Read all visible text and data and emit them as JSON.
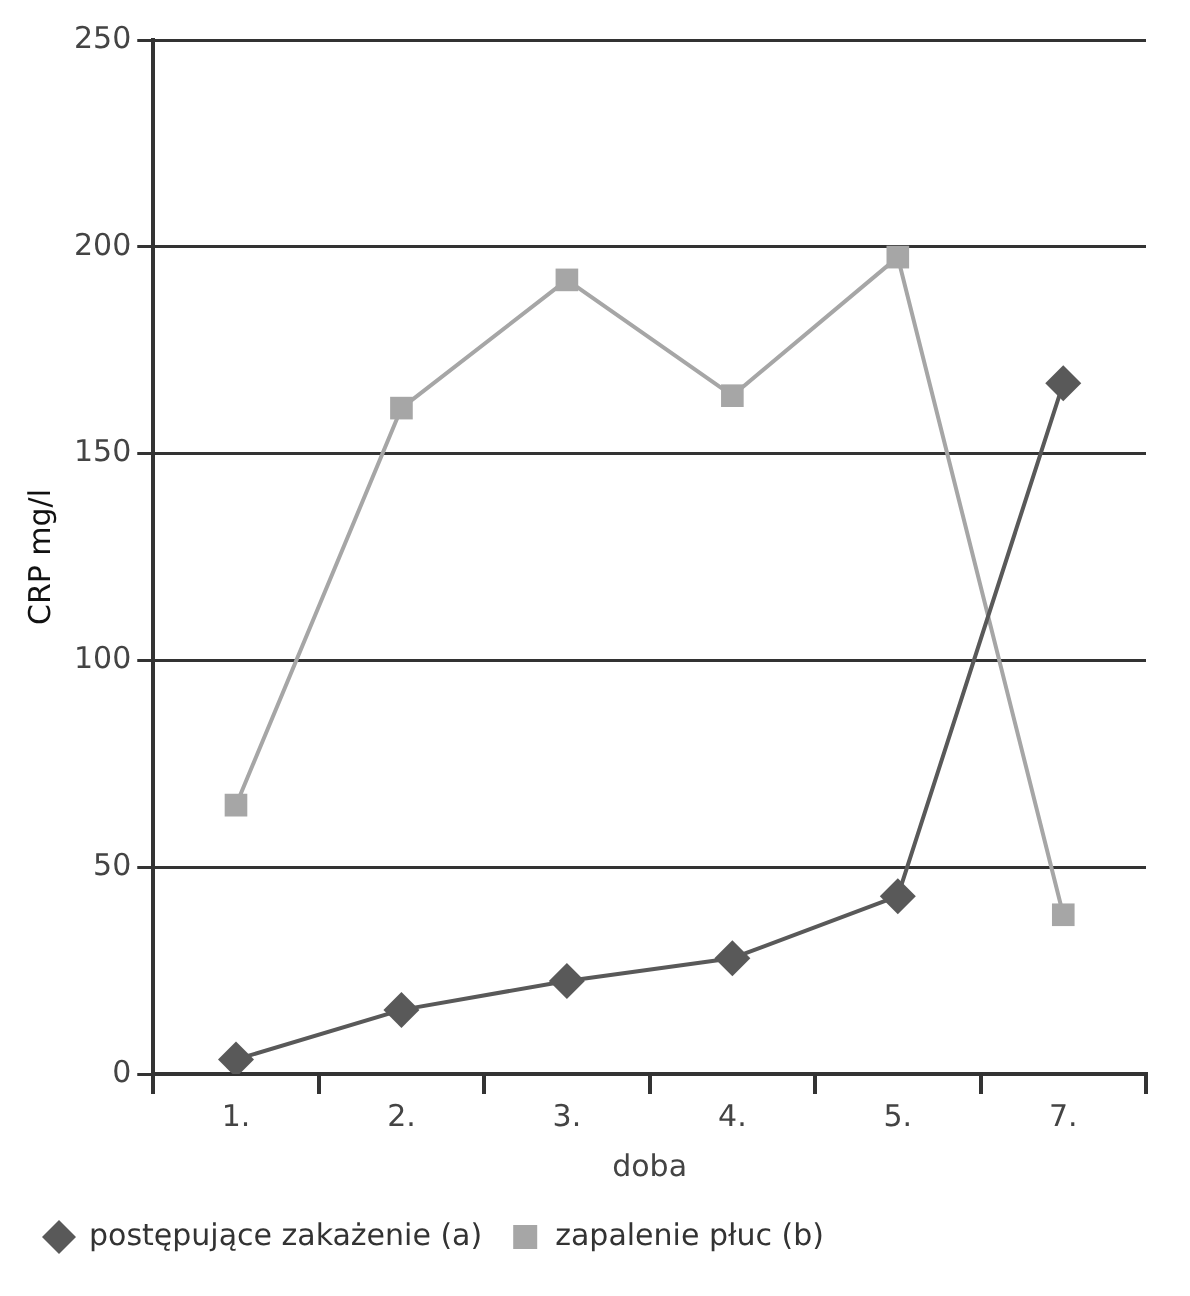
{
  "chart_data": {
    "type": "line",
    "xlabel": "doba",
    "ylabel": "CRP mg/l",
    "categories": [
      "1.",
      "2.",
      "3.",
      "4.",
      "5.",
      "7."
    ],
    "series": [
      {
        "name": "postępujące zakażenie (a)",
        "color": "#595959",
        "marker": "diamond",
        "values": [
          3.5,
          15.5,
          22.5,
          28,
          43,
          167
        ]
      },
      {
        "name": "zapalenie płuc (b)",
        "color": "#a6a6a6",
        "marker": "square",
        "values": [
          65,
          161,
          192,
          164,
          197.5,
          38.5
        ]
      }
    ],
    "ylim": [
      0,
      250
    ],
    "yticks": [
      0,
      50,
      100,
      150,
      200,
      250
    ],
    "grid": "y",
    "legend": "bottom"
  }
}
